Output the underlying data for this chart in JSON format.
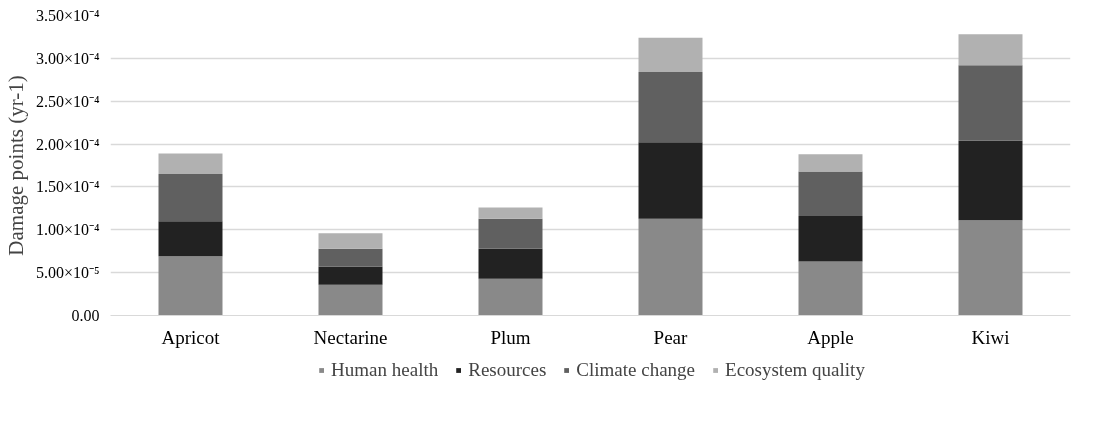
{
  "chart_data": {
    "type": "bar",
    "stacked": true,
    "ylabel": "Damage points (yr-1)",
    "categories": [
      "Apricot",
      "Nectarine",
      "Plum",
      "Pear",
      "Apple",
      "Kiwi"
    ],
    "series": [
      {
        "name": "Human health",
        "color": "#898989",
        "values": [
          6.9e-05,
          3.6e-05,
          4.3e-05,
          0.000113,
          6.3e-05,
          0.000111
        ]
      },
      {
        "name": "Resources",
        "color": "#222222",
        "values": [
          4.1e-05,
          2.1e-05,
          3.5e-05,
          8.9e-05,
          5.3e-05,
          9.3e-05
        ]
      },
      {
        "name": "Climate change",
        "color": "#606060",
        "values": [
          5.5e-05,
          2.1e-05,
          3.5e-05,
          8.2e-05,
          5.2e-05,
          8.8e-05
        ]
      },
      {
        "name": "Ecosystem quality",
        "color": "#b1b1b1",
        "values": [
          2.4e-05,
          1.8e-05,
          1.3e-05,
          4e-05,
          2e-05,
          3.6e-05
        ]
      }
    ],
    "ylim": [
      0,
      0.00035
    ],
    "yticks": [
      {
        "value": 0,
        "label": "0.00"
      },
      {
        "value": 5e-05,
        "label": "5.00×10⁻⁵"
      },
      {
        "value": 0.0001,
        "label": "1.00×10⁻⁴"
      },
      {
        "value": 0.00015,
        "label": "1.50×10⁻⁴"
      },
      {
        "value": 0.0002,
        "label": "2.00×10⁻⁴"
      },
      {
        "value": 0.00025,
        "label": "2.50×10⁻⁴"
      },
      {
        "value": 0.0003,
        "label": "3.00×10⁻⁴"
      },
      {
        "value": 0.00035,
        "label": "3.50×10⁻⁴"
      }
    ],
    "grid": "y",
    "legend": "bottom"
  }
}
